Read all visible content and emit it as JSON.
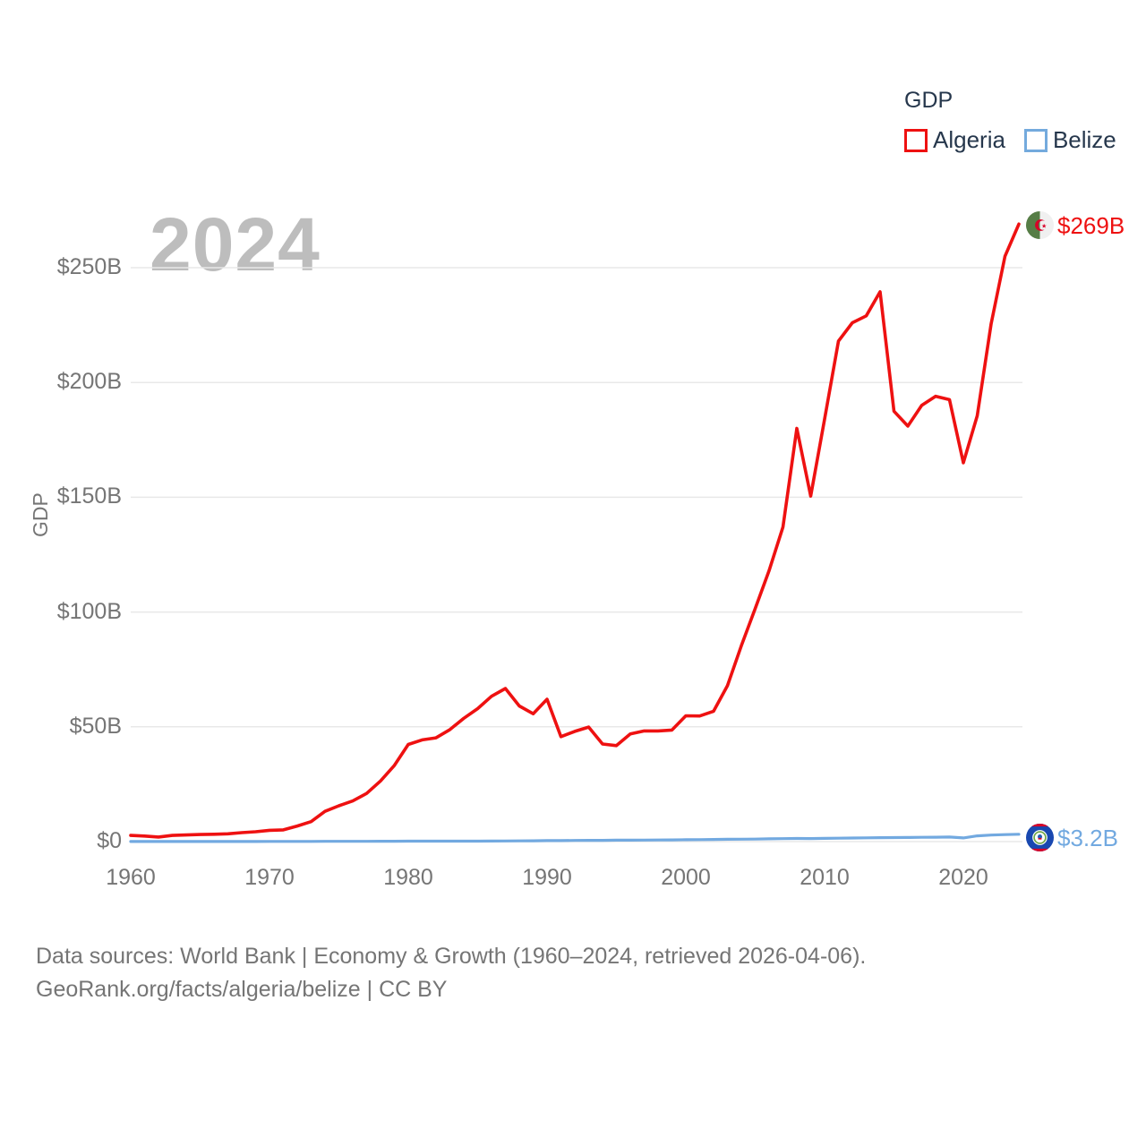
{
  "legend": {
    "title": "GDP",
    "items": [
      {
        "label": "Algeria",
        "color": "#ee1111"
      },
      {
        "label": "Belize",
        "color": "#74aadd"
      }
    ]
  },
  "watermark": "2024",
  "y_axis": {
    "title": "GDP",
    "ticks": [
      "$0",
      "$50B",
      "$100B",
      "$150B",
      "$200B",
      "$250B"
    ]
  },
  "x_axis": {
    "ticks": [
      "1960",
      "1970",
      "1980",
      "1990",
      "2000",
      "2010",
      "2020"
    ]
  },
  "end_labels": {
    "algeria": "$269B",
    "belize": "$3.2B"
  },
  "footer": {
    "line1": "Data sources: World Bank | Economy & Growth (1960–2024, retrieved 2026-04-06).",
    "line2": "GeoRank.org/facts/algeria/belize | CC BY"
  },
  "colors": {
    "algeria_line": "#ee1111",
    "belize_line": "#72a9e0",
    "gridline": "#e8e8e8",
    "axis_text": "#757575",
    "legend_text": "#26374c",
    "watermark": "#bdbdbd"
  },
  "chart_data": {
    "type": "line",
    "title": "GDP",
    "xlabel": "",
    "ylabel": "GDP",
    "xlim": [
      1960,
      2024
    ],
    "ylim": [
      0,
      273
    ],
    "yticks": [
      0,
      50,
      100,
      150,
      200,
      250
    ],
    "xticks": [
      1960,
      1970,
      1980,
      1990,
      2000,
      2010,
      2020
    ],
    "grid": true,
    "legend_position": "top-right",
    "x": [
      1960,
      1961,
      1962,
      1963,
      1964,
      1965,
      1966,
      1967,
      1968,
      1969,
      1970,
      1971,
      1972,
      1973,
      1974,
      1975,
      1976,
      1977,
      1978,
      1979,
      1980,
      1981,
      1982,
      1983,
      1984,
      1985,
      1986,
      1987,
      1988,
      1989,
      1990,
      1991,
      1992,
      1993,
      1994,
      1995,
      1996,
      1997,
      1998,
      1999,
      2000,
      2001,
      2002,
      2003,
      2004,
      2005,
      2006,
      2007,
      2008,
      2009,
      2010,
      2011,
      2012,
      2013,
      2014,
      2015,
      2016,
      2017,
      2018,
      2019,
      2020,
      2021,
      2022,
      2023,
      2024
    ],
    "series": [
      {
        "name": "Algeria",
        "color": "#ee1111",
        "units": "billion USD",
        "values": [
          2.7,
          2.4,
          2.0,
          2.7,
          2.9,
          3.1,
          3.2,
          3.4,
          3.9,
          4.3,
          4.9,
          5.1,
          6.8,
          8.7,
          13.2,
          15.6,
          17.7,
          21.0,
          26.4,
          33.2,
          42.3,
          44.3,
          45.2,
          48.8,
          53.7,
          57.9,
          63.3,
          66.7,
          59.1,
          55.7,
          62.0,
          45.7,
          48.0,
          49.9,
          42.5,
          41.8,
          46.9,
          48.2,
          48.2,
          48.6,
          54.8,
          54.7,
          56.8,
          67.9,
          85.3,
          101.5,
          118.0,
          137.0,
          180.0,
          150.5,
          184.0,
          218.0,
          226.0,
          229.0,
          239.5,
          187.5,
          181.0,
          190.0,
          194.0,
          192.5,
          165.0,
          185.5,
          225.5,
          255.0,
          269.0
        ]
      },
      {
        "name": "Belize",
        "color": "#72a9e0",
        "units": "billion USD",
        "values": [
          0.03,
          0.03,
          0.03,
          0.03,
          0.04,
          0.04,
          0.04,
          0.05,
          0.05,
          0.05,
          0.06,
          0.06,
          0.07,
          0.08,
          0.1,
          0.11,
          0.11,
          0.12,
          0.14,
          0.17,
          0.2,
          0.2,
          0.19,
          0.19,
          0.2,
          0.21,
          0.22,
          0.26,
          0.3,
          0.34,
          0.41,
          0.44,
          0.49,
          0.53,
          0.54,
          0.62,
          0.64,
          0.65,
          0.69,
          0.73,
          0.83,
          0.87,
          0.93,
          1.0,
          1.06,
          1.11,
          1.22,
          1.29,
          1.37,
          1.34,
          1.4,
          1.49,
          1.57,
          1.64,
          1.71,
          1.75,
          1.79,
          1.86,
          1.93,
          1.98,
          1.6,
          2.49,
          2.83,
          3.05,
          3.2
        ]
      }
    ],
    "end_labels": [
      "$269B",
      "$3.2B"
    ]
  }
}
